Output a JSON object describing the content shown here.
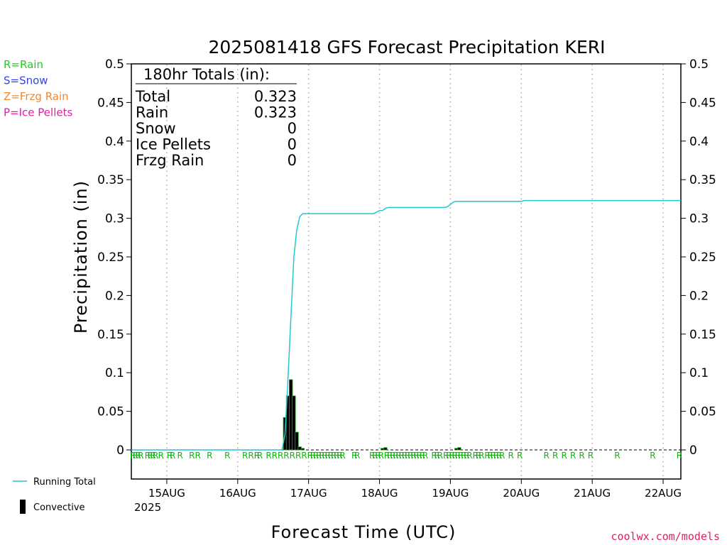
{
  "chart_data": {
    "type": "bar",
    "title": "2025081418 GFS Forecast Precipitation KERI",
    "xlabel": "Forecast Time (UTC)",
    "ylabel": "Precipitation (in)",
    "ylim": [
      0,
      0.5
    ],
    "yticks": [
      "0",
      "0.05",
      "0.1",
      "0.15",
      "0.2",
      "0.25",
      "0.3",
      "0.35",
      "0.4",
      "0.45",
      "0.5"
    ],
    "xlim_hours": [
      -6,
      180
    ],
    "xtick_labels": [
      "15AUG",
      "16AUG",
      "17AUG",
      "18AUG",
      "19AUG",
      "20AUG",
      "21AUG",
      "22AUG"
    ],
    "xtick_year": "2025",
    "xtick_hours": [
      6,
      30,
      54,
      78,
      102,
      126,
      150,
      174
    ],
    "grid": "vertical-dotted",
    "precip_type_legend": [
      {
        "label": "R=Rain",
        "color": "#22cc22"
      },
      {
        "label": "S=Snow",
        "color": "#3344ee"
      },
      {
        "label": "Z=Frzg Rain",
        "color": "#f08830"
      },
      {
        "label": "P=Ice Pellets",
        "color": "#e020a0"
      }
    ],
    "totals": {
      "header": "180hr Totals (in):",
      "rows": [
        {
          "label": "Total",
          "value": "0.323"
        },
        {
          "label": "Rain",
          "value": "0.323"
        },
        {
          "label": "Snow",
          "value": "0"
        },
        {
          "label": "Ice Pellets",
          "value": "0"
        },
        {
          "label": "Frzg Rain",
          "value": "0"
        }
      ]
    },
    "series": [
      {
        "name": "Running Total",
        "type": "line",
        "color": "#22c8d0",
        "x_hours": [
          -6,
          45,
          46,
          47,
          48,
          49,
          50,
          51,
          52,
          53,
          60,
          70,
          76,
          77,
          78,
          79,
          80,
          81,
          90,
          100,
          101,
          102,
          103,
          104,
          105,
          110,
          120,
          126,
          127,
          180
        ],
        "values": [
          0,
          0,
          0.02,
          0.09,
          0.17,
          0.25,
          0.285,
          0.302,
          0.306,
          0.306,
          0.306,
          0.306,
          0.306,
          0.308,
          0.31,
          0.31,
          0.313,
          0.314,
          0.314,
          0.314,
          0.315,
          0.318,
          0.321,
          0.322,
          0.322,
          0.322,
          0.322,
          0.322,
          0.323,
          0.323
        ]
      },
      {
        "name": "Convective",
        "type": "bar",
        "color": "#000000",
        "x_hours": [
          46,
          47,
          48,
          49,
          50,
          51,
          52,
          79,
          80,
          104,
          105
        ],
        "values": [
          0.042,
          0.07,
          0.091,
          0.07,
          0.023,
          0.004,
          0.002,
          0.002,
          0.003,
          0.002,
          0.003
        ]
      }
    ],
    "precip_marks": [
      {
        "x_hours": -5.5,
        "label": "R"
      },
      {
        "x_hours": -4.6,
        "label": "R"
      },
      {
        "x_hours": -3.7,
        "label": "R"
      },
      {
        "x_hours": -2.8,
        "label": "R"
      },
      {
        "x_hours": -0.5,
        "label": "R"
      },
      {
        "x_hours": 0.4,
        "label": "R"
      },
      {
        "x_hours": 1.3,
        "label": "R"
      },
      {
        "x_hours": 2.2,
        "label": "R"
      },
      {
        "x_hours": 4.0,
        "label": "R"
      },
      {
        "x_hours": 7.0,
        "label": "R"
      },
      {
        "x_hours": 8.0,
        "label": "R"
      },
      {
        "x_hours": 10.5,
        "label": "R"
      },
      {
        "x_hours": 14.5,
        "label": "R"
      },
      {
        "x_hours": 16.5,
        "label": "R"
      },
      {
        "x_hours": 20.5,
        "label": "R"
      },
      {
        "x_hours": 26.5,
        "label": "R"
      },
      {
        "x_hours": 32.5,
        "label": "R"
      },
      {
        "x_hours": 34.5,
        "label": "R"
      },
      {
        "x_hours": 36.5,
        "label": "R"
      },
      {
        "x_hours": 37.5,
        "label": "R"
      },
      {
        "x_hours": 40.5,
        "label": "R"
      },
      {
        "x_hours": 42.5,
        "label": "R"
      },
      {
        "x_hours": 44.5,
        "label": "R"
      },
      {
        "x_hours": 46.5,
        "label": "R"
      },
      {
        "x_hours": 48.5,
        "label": "R"
      },
      {
        "x_hours": 50.5,
        "label": "R"
      },
      {
        "x_hours": 52.5,
        "label": "R"
      },
      {
        "x_hours": 54.5,
        "label": "R"
      },
      {
        "x_hours": 55.5,
        "label": "R"
      },
      {
        "x_hours": 56.5,
        "label": "R"
      },
      {
        "x_hours": 57.5,
        "label": "R"
      },
      {
        "x_hours": 58.5,
        "label": "R"
      },
      {
        "x_hours": 59.5,
        "label": "R"
      },
      {
        "x_hours": 60.5,
        "label": "R"
      },
      {
        "x_hours": 61.5,
        "label": "R"
      },
      {
        "x_hours": 62.5,
        "label": "R"
      },
      {
        "x_hours": 63.5,
        "label": "R"
      },
      {
        "x_hours": 64.5,
        "label": "R"
      },
      {
        "x_hours": 65.5,
        "label": "R"
      },
      {
        "x_hours": 69.5,
        "label": "R"
      },
      {
        "x_hours": 70.5,
        "label": "R"
      },
      {
        "x_hours": 75.5,
        "label": "R"
      },
      {
        "x_hours": 76.5,
        "label": "R"
      },
      {
        "x_hours": 77.5,
        "label": "R"
      },
      {
        "x_hours": 78.5,
        "label": "R"
      },
      {
        "x_hours": 80.5,
        "label": "R"
      },
      {
        "x_hours": 81.5,
        "label": "R"
      },
      {
        "x_hours": 82.5,
        "label": "R"
      },
      {
        "x_hours": 83.5,
        "label": "R"
      },
      {
        "x_hours": 84.5,
        "label": "R"
      },
      {
        "x_hours": 85.5,
        "label": "R"
      },
      {
        "x_hours": 86.5,
        "label": "R"
      },
      {
        "x_hours": 87.5,
        "label": "R"
      },
      {
        "x_hours": 88.5,
        "label": "R"
      },
      {
        "x_hours": 89.5,
        "label": "R"
      },
      {
        "x_hours": 90.5,
        "label": "R"
      },
      {
        "x_hours": 91.5,
        "label": "R"
      },
      {
        "x_hours": 92.5,
        "label": "R"
      },
      {
        "x_hours": 93.5,
        "label": "R"
      },
      {
        "x_hours": 96.5,
        "label": "R"
      },
      {
        "x_hours": 97.5,
        "label": "R"
      },
      {
        "x_hours": 98.5,
        "label": "R"
      },
      {
        "x_hours": 100.5,
        "label": "R"
      },
      {
        "x_hours": 101.5,
        "label": "R"
      },
      {
        "x_hours": 102.5,
        "label": "R"
      },
      {
        "x_hours": 103.5,
        "label": "R"
      },
      {
        "x_hours": 104.5,
        "label": "R"
      },
      {
        "x_hours": 105.5,
        "label": "R"
      },
      {
        "x_hours": 106.5,
        "label": "R"
      },
      {
        "x_hours": 107.5,
        "label": "R"
      },
      {
        "x_hours": 108.5,
        "label": "R"
      },
      {
        "x_hours": 110.5,
        "label": "R"
      },
      {
        "x_hours": 111.5,
        "label": "R"
      },
      {
        "x_hours": 112.5,
        "label": "R"
      },
      {
        "x_hours": 114.5,
        "label": "R"
      },
      {
        "x_hours": 115.5,
        "label": "R"
      },
      {
        "x_hours": 116.5,
        "label": "R"
      },
      {
        "x_hours": 117.5,
        "label": "R"
      },
      {
        "x_hours": 118.5,
        "label": "R"
      },
      {
        "x_hours": 119.5,
        "label": "R"
      },
      {
        "x_hours": 122.5,
        "label": "R"
      },
      {
        "x_hours": 125.5,
        "label": "R"
      },
      {
        "x_hours": 134.5,
        "label": "R"
      },
      {
        "x_hours": 137.5,
        "label": "R"
      },
      {
        "x_hours": 140.5,
        "label": "R"
      },
      {
        "x_hours": 143.5,
        "label": "R"
      },
      {
        "x_hours": 146.5,
        "label": "R"
      },
      {
        "x_hours": 149.5,
        "label": "R"
      },
      {
        "x_hours": 158.5,
        "label": "R"
      },
      {
        "x_hours": 170.5,
        "label": "R"
      },
      {
        "x_hours": 179.5,
        "label": "R"
      }
    ],
    "bottom_legend": [
      {
        "label": "Running Total",
        "kind": "line",
        "color": "#22c8d0"
      },
      {
        "label": "Convective",
        "kind": "bar",
        "color": "#000000"
      }
    ],
    "credit": "coolwx.com/models"
  }
}
